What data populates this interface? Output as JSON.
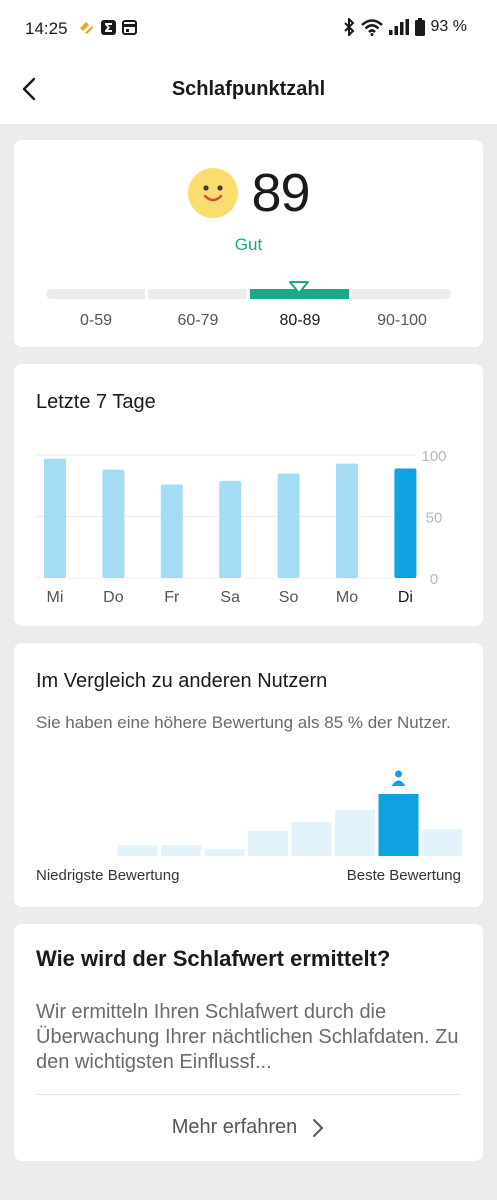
{
  "status_bar": {
    "time": "14:25",
    "battery": "93 %",
    "icons": [
      "notification-app-icon",
      "sigma-app-icon",
      "calendar-app-icon",
      "bluetooth-icon",
      "wifi-icon",
      "signal-icon",
      "battery-icon"
    ]
  },
  "header": {
    "title": "Schlafpunktzahl",
    "back_icon": "chevron-left-icon"
  },
  "score_card": {
    "score": "89",
    "rating": "Gut",
    "rating_color": "#1aaa83",
    "face_icon": "smiley-face-icon",
    "active_range_index": 2,
    "ranges": [
      "0-59",
      "60-79",
      "80-89",
      "90-100"
    ]
  },
  "week_card": {
    "title": "Letzte 7 Tage"
  },
  "chart_data": {
    "type": "bar",
    "categories": [
      "Mi",
      "Do",
      "Fr",
      "Sa",
      "So",
      "Mo",
      "Di"
    ],
    "values": [
      97,
      88,
      76,
      79,
      85,
      93,
      89
    ],
    "ylim": [
      0,
      100
    ],
    "yticks": [
      "100",
      "50",
      "0"
    ],
    "highlight_index": 6,
    "colors": {
      "default": "#a3dcf3",
      "highlight": "#0ea2e3"
    },
    "grid": true
  },
  "compare_card": {
    "title": "Im Vergleich zu anderen Nutzern",
    "description": "Sie haben eine höhere Bewertung als 85 % der Nutzer.",
    "low_label": "Niedrigste Bewertung",
    "high_label": "Beste Bewertung",
    "user_icon": "person-icon",
    "distribution": [
      0,
      11,
      11,
      7,
      25,
      34,
      46,
      62,
      27
    ],
    "user_bin_index": 7,
    "colors": {
      "default": "#e3f3fb",
      "highlight": "#0ea2e3"
    }
  },
  "info_card": {
    "title": "Wie wird der Schlafwert ermittelt?",
    "text": "Wir ermitteln Ihren Schlafwert durch die Überwachung Ihrer nächtlichen Schlafdaten. Zu den wichtigsten Einflussf...",
    "link_label": "Mehr erfahren",
    "link_icon": "chevron-right-icon"
  }
}
